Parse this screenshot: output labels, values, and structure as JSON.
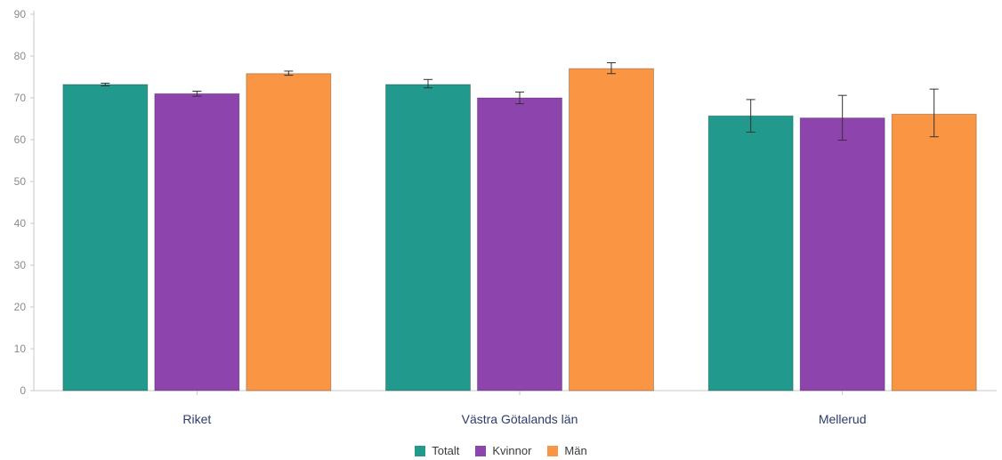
{
  "chart_data": {
    "type": "bar",
    "categories": [
      "Riket",
      "Västra Götalands län",
      "Mellerud"
    ],
    "series": [
      {
        "name": "Totalt",
        "color": "#21998d",
        "values": [
          73.2,
          73.2,
          65.7
        ],
        "err_low": [
          72.9,
          72.4,
          61.8
        ],
        "err_high": [
          73.5,
          74.4,
          69.6
        ]
      },
      {
        "name": "Kvinnor",
        "color": "#8e44ad",
        "values": [
          71.0,
          70.0,
          65.2
        ],
        "err_low": [
          70.4,
          68.6,
          59.9
        ],
        "err_high": [
          71.6,
          71.4,
          70.6
        ]
      },
      {
        "name": "Män",
        "color": "#f99543",
        "values": [
          75.8,
          77.0,
          66.1
        ],
        "err_low": [
          75.4,
          75.8,
          60.7
        ],
        "err_high": [
          76.4,
          78.4,
          72.1
        ]
      }
    ],
    "ylim": [
      0,
      90
    ],
    "yticks": [
      0,
      10,
      20,
      30,
      40,
      50,
      60,
      70,
      80,
      90
    ],
    "xlabel": "",
    "ylabel": "",
    "grid": false,
    "legend_position": "bottom"
  }
}
